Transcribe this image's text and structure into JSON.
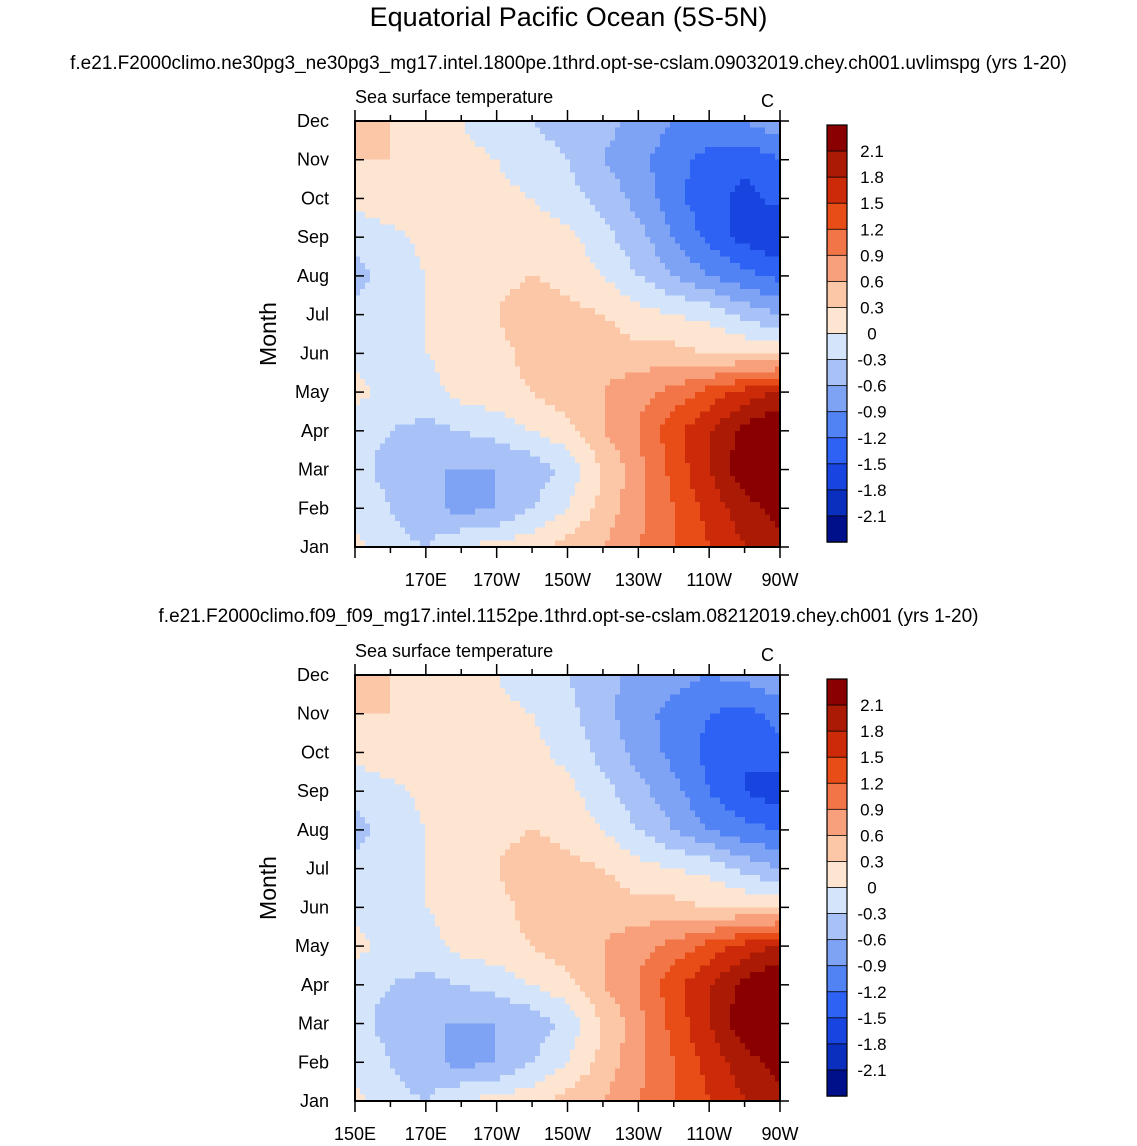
{
  "figure": {
    "title": "Equatorial Pacific Ocean (5S-5N)"
  },
  "chart_data": [
    {
      "type": "heatmap",
      "case_title": "f.e21.F2000climo.ne30pg3_ne30pg3_mg17.intel.1800pe.1thrd.opt-se-cslam.09032019.chey.ch001.uvlimspg (yrs 1-20)",
      "subtitle": "Sea surface temperature",
      "units": "C",
      "ylabel": "Month",
      "xlabel": "",
      "x_ticklabels": [
        "",
        "170E",
        "170W",
        "150W",
        "130W",
        "110W",
        "90W"
      ],
      "y_ticklabels": [
        "Jan",
        "Feb",
        "Mar",
        "Apr",
        "May",
        "Jun",
        "Jul",
        "Aug",
        "Sep",
        "Oct",
        "Nov",
        "Dec"
      ],
      "xlim": [
        150,
        270
      ],
      "ylim": [
        1,
        12
      ],
      "grid": false,
      "x_longitudes": [
        150,
        160,
        170,
        180,
        190,
        200,
        210,
        220,
        230,
        240,
        250,
        260,
        270
      ],
      "months": [
        "Jan",
        "Feb",
        "Mar",
        "Apr",
        "May",
        "Jun",
        "Jul",
        "Aug",
        "Sep",
        "Oct",
        "Nov",
        "Dec"
      ],
      "values": [
        [
          0.1,
          -0.2,
          -0.3,
          0.0,
          0.1,
          0.2,
          0.4,
          0.6,
          0.9,
          1.2,
          1.5,
          1.8,
          2.0
        ],
        [
          -0.1,
          -0.3,
          -0.5,
          -0.7,
          -0.6,
          -0.3,
          0.0,
          0.4,
          0.8,
          1.2,
          1.6,
          2.0,
          2.2
        ],
        [
          -0.2,
          -0.4,
          -0.6,
          -0.6,
          -0.6,
          -0.5,
          -0.2,
          0.3,
          0.8,
          1.3,
          1.8,
          2.3,
          2.4
        ],
        [
          -0.2,
          -0.3,
          -0.4,
          -0.3,
          -0.2,
          0.0,
          0.2,
          0.6,
          0.9,
          1.4,
          1.8,
          2.2,
          2.4
        ],
        [
          0.1,
          -0.1,
          -0.1,
          0.1,
          0.2,
          0.3,
          0.5,
          0.6,
          0.8,
          1.0,
          1.3,
          1.6,
          1.9
        ],
        [
          -0.1,
          -0.1,
          0.0,
          0.1,
          0.2,
          0.4,
          0.5,
          0.5,
          0.4,
          0.4,
          0.3,
          0.3,
          0.2
        ],
        [
          -0.2,
          -0.2,
          0.0,
          0.1,
          0.3,
          0.5,
          0.4,
          0.3,
          0.1,
          0.0,
          -0.1,
          -0.4,
          -0.6
        ],
        [
          -0.4,
          -0.2,
          0.0,
          0.1,
          0.2,
          0.3,
          0.2,
          0.0,
          -0.3,
          -0.6,
          -0.9,
          -1.1,
          -1.3
        ],
        [
          -0.2,
          -0.1,
          0.1,
          0.1,
          0.2,
          0.2,
          0.1,
          -0.2,
          -0.5,
          -0.9,
          -1.3,
          -1.6,
          -1.8
        ],
        [
          0.1,
          0.2,
          0.2,
          0.2,
          0.1,
          0.0,
          -0.2,
          -0.4,
          -0.7,
          -1.1,
          -1.4,
          -1.6,
          -1.4
        ],
        [
          0.3,
          0.3,
          0.3,
          0.1,
          0.0,
          -0.2,
          -0.3,
          -0.6,
          -0.8,
          -1.1,
          -1.3,
          -1.4,
          -1.2
        ],
        [
          0.5,
          0.3,
          0.1,
          0.0,
          -0.2,
          -0.3,
          -0.4,
          -0.5,
          -0.7,
          -0.9,
          -1.0,
          -0.9,
          -0.7
        ]
      ],
      "colorbar_labels": [
        "2.1",
        "1.8",
        "1.5",
        "1.2",
        "0.9",
        "0.6",
        "0.3",
        "0",
        "-0.3",
        "-0.6",
        "-0.9",
        "-1.2",
        "-1.5",
        "-1.8",
        "-2.1"
      ],
      "levels": [
        -2.1,
        -1.8,
        -1.5,
        -1.2,
        -0.9,
        -0.6,
        -0.3,
        0,
        0.3,
        0.6,
        0.9,
        1.2,
        1.5,
        1.8,
        2.1
      ],
      "colors": [
        "#000f8a",
        "#0a2fbf",
        "#1845e0",
        "#2e62f5",
        "#5283f5",
        "#7ea2f4",
        "#a8c2f8",
        "#d4e5fb",
        "#fde5d1",
        "#fbc7a7",
        "#f8a07b",
        "#f27547",
        "#e84d18",
        "#cc2a08",
        "#ab1a04",
        "#8a0000"
      ]
    },
    {
      "type": "heatmap",
      "case_title": "f.e21.F2000climo.f09_f09_mg17.intel.1152pe.1thrd.opt-se-cslam.08212019.chey.ch001 (yrs 1-20)",
      "subtitle": "Sea surface temperature",
      "units": "C",
      "ylabel": "Month",
      "xlabel": "",
      "x_ticklabels": [
        "150E",
        "170E",
        "170W",
        "150W",
        "130W",
        "110W",
        "90W"
      ],
      "y_ticklabels": [
        "Jan",
        "Feb",
        "Mar",
        "Apr",
        "May",
        "Jun",
        "Jul",
        "Aug",
        "Sep",
        "Oct",
        "Nov",
        "Dec"
      ],
      "xlim": [
        150,
        270
      ],
      "ylim": [
        1,
        12
      ],
      "grid": false,
      "x_longitudes": [
        150,
        160,
        170,
        180,
        190,
        200,
        210,
        220,
        230,
        240,
        250,
        260,
        270
      ],
      "months": [
        "Jan",
        "Feb",
        "Mar",
        "Apr",
        "May",
        "Jun",
        "Jul",
        "Aug",
        "Sep",
        "Oct",
        "Nov",
        "Dec"
      ],
      "values": [
        [
          0.1,
          -0.2,
          -0.3,
          0.0,
          0.1,
          0.2,
          0.4,
          0.6,
          0.9,
          1.2,
          1.5,
          1.8,
          2.0
        ],
        [
          -0.1,
          -0.3,
          -0.5,
          -0.7,
          -0.6,
          -0.3,
          0.0,
          0.4,
          0.8,
          1.2,
          1.6,
          2.0,
          2.2
        ],
        [
          -0.2,
          -0.4,
          -0.6,
          -0.6,
          -0.6,
          -0.5,
          -0.2,
          0.3,
          0.8,
          1.3,
          1.8,
          2.3,
          2.4
        ],
        [
          -0.2,
          -0.3,
          -0.4,
          -0.3,
          -0.2,
          0.0,
          0.2,
          0.6,
          0.9,
          1.4,
          1.8,
          2.2,
          2.4
        ],
        [
          0.1,
          -0.1,
          -0.1,
          0.1,
          0.2,
          0.3,
          0.5,
          0.6,
          0.8,
          1.0,
          1.3,
          1.6,
          1.9
        ],
        [
          -0.1,
          -0.1,
          0.0,
          0.1,
          0.2,
          0.4,
          0.5,
          0.5,
          0.4,
          0.4,
          0.3,
          0.3,
          0.2
        ],
        [
          -0.2,
          -0.2,
          0.0,
          0.1,
          0.3,
          0.5,
          0.4,
          0.3,
          0.1,
          0.0,
          -0.1,
          -0.4,
          -0.6
        ],
        [
          -0.4,
          -0.2,
          0.0,
          0.1,
          0.2,
          0.3,
          0.2,
          0.0,
          -0.3,
          -0.6,
          -0.9,
          -1.1,
          -1.2
        ],
        [
          -0.2,
          -0.1,
          0.1,
          0.2,
          0.2,
          0.2,
          0.1,
          -0.2,
          -0.5,
          -0.8,
          -1.2,
          -1.5,
          -1.7
        ],
        [
          0.1,
          0.2,
          0.2,
          0.2,
          0.2,
          0.1,
          -0.1,
          -0.4,
          -0.7,
          -1.0,
          -1.3,
          -1.5,
          -1.3
        ],
        [
          0.3,
          0.3,
          0.3,
          0.2,
          0.1,
          0.0,
          -0.2,
          -0.5,
          -0.8,
          -1.0,
          -1.2,
          -1.3,
          -1.1
        ],
        [
          0.5,
          0.3,
          0.2,
          0.1,
          0.0,
          -0.2,
          -0.3,
          -0.5,
          -0.7,
          -0.8,
          -0.9,
          -0.8,
          -0.6
        ]
      ],
      "colorbar_labels": [
        "2.1",
        "1.8",
        "1.5",
        "1.2",
        "0.9",
        "0.6",
        "0.3",
        "0",
        "-0.3",
        "-0.6",
        "-0.9",
        "-1.2",
        "-1.5",
        "-1.8",
        "-2.1"
      ],
      "levels": [
        -2.1,
        -1.8,
        -1.5,
        -1.2,
        -0.9,
        -0.6,
        -0.3,
        0,
        0.3,
        0.6,
        0.9,
        1.2,
        1.5,
        1.8,
        2.1
      ],
      "colors": [
        "#000f8a",
        "#0a2fbf",
        "#1845e0",
        "#2e62f5",
        "#5283f5",
        "#7ea2f4",
        "#a8c2f8",
        "#d4e5fb",
        "#fde5d1",
        "#fbc7a7",
        "#f8a07b",
        "#f27547",
        "#e84d18",
        "#cc2a08",
        "#ab1a04",
        "#8a0000"
      ]
    }
  ]
}
